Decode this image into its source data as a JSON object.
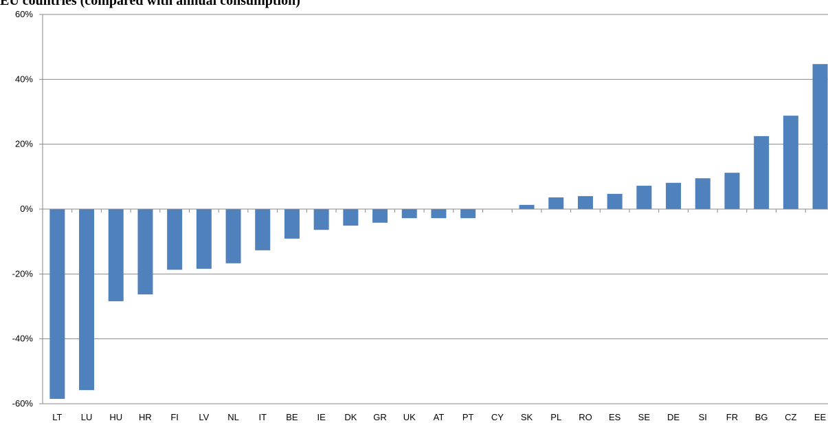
{
  "chart_data": {
    "type": "bar",
    "title": "EU countries (compared with annual consumption)",
    "categories": [
      "LT",
      "LU",
      "HU",
      "HR",
      "FI",
      "LV",
      "NL",
      "IT",
      "BE",
      "IE",
      "DK",
      "GR",
      "UK",
      "AT",
      "PT",
      "CY",
      "SK",
      "PL",
      "RO",
      "ES",
      "SE",
      "DE",
      "SI",
      "FR",
      "BG",
      "CZ",
      "EE"
    ],
    "values": [
      -58.5,
      -55.8,
      -28.4,
      -26.3,
      -18.7,
      -18.4,
      -16.7,
      -12.7,
      -9.1,
      -6.4,
      -5.1,
      -4.2,
      -2.8,
      -2.8,
      -2.8,
      0,
      1.3,
      3.6,
      4.0,
      4.7,
      7.2,
      8.1,
      9.5,
      11.2,
      22.5,
      28.8,
      44.7
    ],
    "color": "#4f81bd",
    "ylim": [
      -60,
      60
    ],
    "yticks": [
      {
        "value": -60,
        "label": "-60%"
      },
      {
        "value": -40,
        "label": "-40%"
      },
      {
        "value": -20,
        "label": "-20%"
      },
      {
        "value": 0,
        "label": "0%"
      },
      {
        "value": 20,
        "label": "20%"
      },
      {
        "value": 40,
        "label": "40%"
      },
      {
        "value": 60,
        "label": "60%"
      }
    ],
    "grid": true
  }
}
